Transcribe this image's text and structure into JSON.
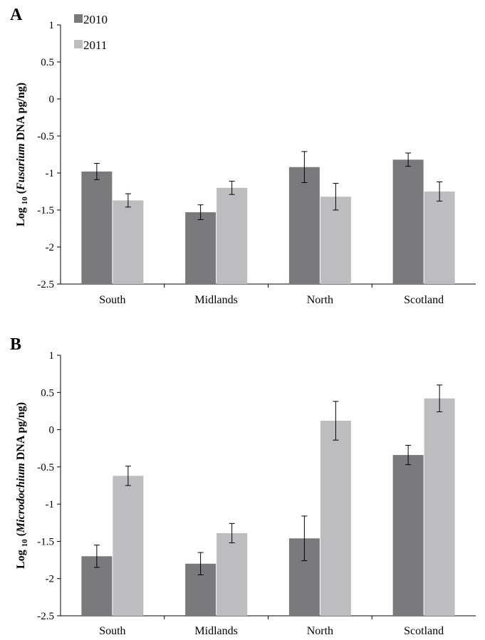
{
  "panels": [
    {
      "label": "A"
    },
    {
      "label": "B"
    }
  ],
  "colors": {
    "s2010": "#7a7a7c",
    "s2011": "#bdbdbf",
    "axis": "#000000"
  },
  "chart_data": [
    {
      "type": "bar",
      "panel": "A",
      "categories": [
        "South",
        "Midlands",
        "North",
        "Scotland"
      ],
      "series": [
        {
          "name": "2010",
          "values": [
            -0.98,
            -1.53,
            -0.92,
            -0.82
          ],
          "errors": [
            0.11,
            0.1,
            0.21,
            0.09
          ]
        },
        {
          "name": "2011",
          "values": [
            -1.37,
            -1.2,
            -1.32,
            -1.25
          ],
          "errors": [
            0.09,
            0.09,
            0.18,
            0.13
          ]
        }
      ],
      "ylabel_prefix": "Log",
      "ylabel_sub": "10",
      "ylabel_open": "(",
      "ylabel_italic": "Fusarium",
      "ylabel_rest": " DNA pg/ng)",
      "ylim": [
        -2.5,
        1
      ],
      "yticks": [
        "1",
        "0.5",
        "0",
        "-0.5",
        "-1",
        "-1.5",
        "-2",
        "-2.5"
      ],
      "legend": "top-left",
      "grid": false
    },
    {
      "type": "bar",
      "panel": "B",
      "categories": [
        "South",
        "Midlands",
        "North",
        "Scotland"
      ],
      "series": [
        {
          "name": "2010",
          "values": [
            -1.7,
            -1.8,
            -1.46,
            -0.34
          ],
          "errors": [
            0.15,
            0.15,
            0.3,
            0.13
          ]
        },
        {
          "name": "2011",
          "values": [
            -0.62,
            -1.39,
            0.12,
            0.42
          ],
          "errors": [
            0.13,
            0.13,
            0.26,
            0.18
          ]
        }
      ],
      "ylabel_prefix": "Log",
      "ylabel_sub": "10",
      "ylabel_open": "(",
      "ylabel_italic": "Microdochium",
      "ylabel_rest": " DNA pg/ng)",
      "ylim": [
        -2.5,
        1
      ],
      "yticks": [
        "1",
        "0.5",
        "0",
        "-0.5",
        "-1",
        "-1.5",
        "-2",
        "-2.5"
      ],
      "legend": "none",
      "grid": false
    }
  ]
}
